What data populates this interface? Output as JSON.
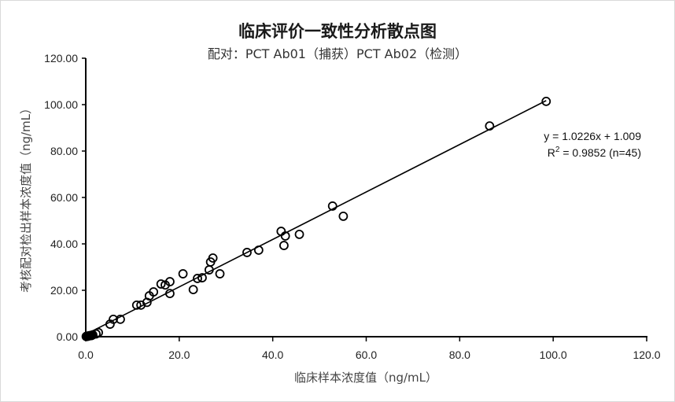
{
  "chart": {
    "title": "临床评价一致性分析散点图",
    "subtitle": "配对：PCT Ab01（捕获）PCT Ab02（检测）",
    "xlabel": "临床样本浓度值（ng/mL）",
    "ylabel": "考核配对检出样本浓度值（ng/mL）",
    "equation": "y = 1.0226x + 1.009",
    "r2_label": "R",
    "r2_sup": "2",
    "r2_value": " = 0.9852 (n=45)"
  },
  "chart_data": {
    "type": "scatter",
    "title": "临床评价一致性分析散点图",
    "subtitle": "配对：PCT Ab01（捕获）PCT Ab02（检测）",
    "xlabel": "临床样本浓度值（ng/mL）",
    "ylabel": "考核配对检出样本浓度值（ng/mL）",
    "xlim": [
      0,
      120
    ],
    "ylim": [
      0,
      120
    ],
    "x_ticks": [
      "0.0",
      "20.0",
      "40.0",
      "60.0",
      "80.0",
      "100.0",
      "120.0"
    ],
    "y_ticks": [
      "0.00",
      "20.00",
      "40.00",
      "60.00",
      "80.00",
      "100.00",
      "120.00"
    ],
    "grid": false,
    "legend": null,
    "trendline": {
      "slope": 1.0226,
      "intercept": 1.009,
      "r2": 0.9852,
      "n": 45,
      "label": "y = 1.0226x + 1.009",
      "r2_label": "R² = 0.9852 (n=45)"
    },
    "series": [
      {
        "name": "samples",
        "marker": "open-circle",
        "points": [
          [
            0.1,
            0.1
          ],
          [
            0.2,
            0.1
          ],
          [
            0.3,
            0.2
          ],
          [
            0.4,
            0.2
          ],
          [
            0.5,
            0.3
          ],
          [
            0.6,
            0.3
          ],
          [
            0.8,
            0.4
          ],
          [
            1.0,
            0.5
          ],
          [
            1.2,
            0.5
          ],
          [
            1.5,
            0.8
          ],
          [
            2.2,
            1.2
          ],
          [
            2.7,
            1.8
          ],
          [
            5.2,
            5.4
          ],
          [
            5.9,
            7.5
          ],
          [
            7.4,
            7.5
          ],
          [
            10.9,
            13.6
          ],
          [
            11.8,
            13.6
          ],
          [
            13.1,
            14.8
          ],
          [
            13.6,
            17.6
          ],
          [
            14.5,
            19.3
          ],
          [
            16.1,
            22.7
          ],
          [
            17.0,
            22.3
          ],
          [
            18.0,
            23.7
          ],
          [
            18.0,
            18.6
          ],
          [
            20.8,
            27.1
          ],
          [
            23.0,
            20.3
          ],
          [
            23.9,
            25.1
          ],
          [
            24.9,
            25.4
          ],
          [
            26.4,
            28.8
          ],
          [
            26.7,
            32.2
          ],
          [
            27.2,
            33.9
          ],
          [
            28.7,
            27.1
          ],
          [
            34.5,
            36.3
          ],
          [
            37.0,
            37.3
          ],
          [
            41.8,
            45.4
          ],
          [
            42.4,
            39.3
          ],
          [
            42.7,
            43.4
          ],
          [
            45.7,
            44.1
          ],
          [
            52.8,
            56.3
          ],
          [
            55.1,
            51.9
          ],
          [
            86.4,
            90.8
          ],
          [
            98.5,
            101.4
          ],
          [
            0.2,
            0.2
          ],
          [
            0.7,
            0.4
          ],
          [
            1.3,
            0.6
          ]
        ]
      }
    ]
  }
}
